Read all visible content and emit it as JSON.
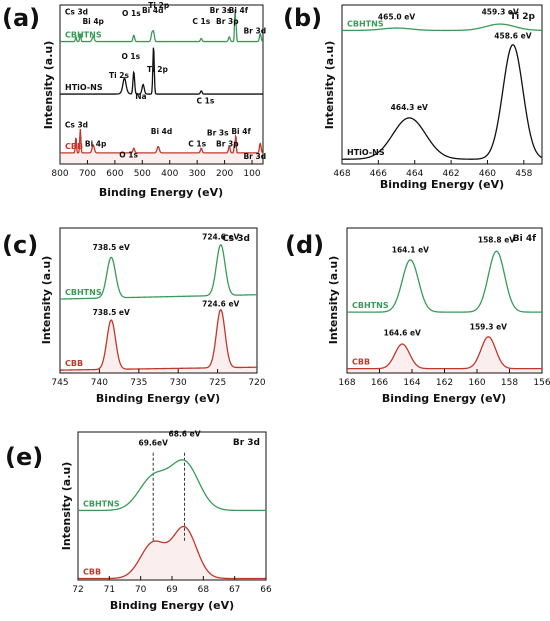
{
  "chart_data": [
    {
      "id": "a",
      "panel_label": "(a)",
      "type": "line",
      "xlabel": "Binding Energy (eV)",
      "ylabel": "Intensity (a.u)",
      "xlim": [
        800,
        60
      ],
      "ylim": [
        0,
        100
      ],
      "xticks": [
        "800",
        "700",
        "600",
        "500",
        "400",
        "300",
        "200",
        "100"
      ],
      "series": [
        {
          "name": "CBHTNS",
          "color": "#3a9a5a",
          "baseline": 77,
          "peaks": [
            [
              742,
              3,
              2
            ],
            [
              726,
              5,
              2
            ],
            [
              679,
              3,
              4
            ],
            [
              531,
              4,
              3
            ],
            [
              465,
              5,
              3
            ],
            [
              459,
              6,
              3
            ],
            [
              285,
              2,
              3
            ],
            [
              183,
              3,
              3
            ],
            [
              162,
              20,
              1.8
            ],
            [
              158,
              10,
              1.5
            ],
            [
              70,
              5,
              3
            ]
          ]
        },
        {
          "name": "HTiO-NS",
          "color": "#111111",
          "baseline": 44,
          "peaks": [
            [
              565,
              6,
              5
            ],
            [
              531,
              14,
              3
            ],
            [
              459,
              30,
              2.5
            ],
            [
              565,
              4,
              8
            ],
            [
              497,
              6,
              4
            ],
            [
              285,
              2,
              3
            ]
          ]
        },
        {
          "name": "CBB",
          "color": "#c0392b",
          "baseline": 7,
          "peaks": [
            [
              742,
              10,
              2
            ],
            [
              726,
              15,
              2
            ],
            [
              679,
              5,
              4
            ],
            [
              531,
              3,
              3
            ],
            [
              442,
              4,
              4
            ],
            [
              285,
              3,
              3
            ],
            [
              183,
              4,
              3
            ],
            [
              164,
              6,
              1.8
            ],
            [
              159,
              12,
              1.5
            ],
            [
              70,
              6,
              3
            ]
          ]
        }
      ],
      "annotations": [
        {
          "text": "Cs 3d",
          "x": 740,
          "y": 94,
          "series": "CBHTNS"
        },
        {
          "text": "Bi 4p",
          "x": 679,
          "y": 88,
          "series": "CBHTNS"
        },
        {
          "text": "O 1s",
          "x": 540,
          "y": 93,
          "series": "CBHTNS"
        },
        {
          "text": "Bi 4d",
          "x": 462,
          "y": 95,
          "series": "CBHTNS"
        },
        {
          "text": "Ti 2p",
          "x": 440,
          "y": 98,
          "series": "CBHTNS"
        },
        {
          "text": "C 1s",
          "x": 285,
          "y": 88,
          "series": "CBHTNS"
        },
        {
          "text": "Br 3s",
          "x": 215,
          "y": 95,
          "series": "CBHTNS"
        },
        {
          "text": "Br 3p",
          "x": 190,
          "y": 88,
          "series": "CBHTNS"
        },
        {
          "text": "Bi 4f",
          "x": 150,
          "y": 95,
          "series": "CBHTNS"
        },
        {
          "text": "Br 3d",
          "x": 90,
          "y": 82,
          "series": "CBHTNS"
        },
        {
          "text": "O 1s",
          "x": 542,
          "y": 66,
          "series": "HTiO-NS"
        },
        {
          "text": "Ti 2s",
          "x": 585,
          "y": 54,
          "series": "HTiO-NS"
        },
        {
          "text": "Ti 2p",
          "x": 445,
          "y": 58,
          "series": "HTiO-NS"
        },
        {
          "text": "Na",
          "x": 505,
          "y": 41,
          "series": "HTiO-NS"
        },
        {
          "text": "C 1s",
          "x": 270,
          "y": 38,
          "series": "HTiO-NS"
        },
        {
          "text": "Cs 3d",
          "x": 740,
          "y": 23,
          "series": "CBB"
        },
        {
          "text": "Bi 4p",
          "x": 670,
          "y": 11,
          "series": "CBB"
        },
        {
          "text": "Bi 4d",
          "x": 430,
          "y": 19,
          "series": "CBB"
        },
        {
          "text": "O 1s",
          "x": 550,
          "y": 4,
          "series": "CBB"
        },
        {
          "text": "C 1s",
          "x": 300,
          "y": 11,
          "series": "CBB"
        },
        {
          "text": "Br 3s",
          "x": 225,
          "y": 18,
          "series": "CBB"
        },
        {
          "text": "Br 3p",
          "x": 190,
          "y": 11,
          "series": "CBB"
        },
        {
          "text": "Bi 4f",
          "x": 140,
          "y": 19,
          "series": "CBB"
        },
        {
          "text": "Br 3d",
          "x": 90,
          "y": 3,
          "series": "CBB"
        }
      ]
    },
    {
      "id": "b",
      "panel_label": "(b)",
      "type": "line",
      "corner_label": "Ti 2p",
      "xlabel": "Binding Energy (eV)",
      "ylabel": "Intensity (a.u)",
      "xlim": [
        468,
        457
      ],
      "ylim": [
        0,
        100
      ],
      "xticks": [
        "468",
        "466",
        "464",
        "462",
        "460",
        "458"
      ],
      "series": [
        {
          "name": "CBHTNS",
          "color": "#3a9a5a",
          "baseline": 84,
          "peaks": [
            [
              465.0,
              1.5,
              0.8
            ],
            [
              459.3,
              4,
              0.8
            ]
          ]
        },
        {
          "name": "HTiO-NS",
          "color": "#111111",
          "baseline": 3,
          "peaks": [
            [
              464.3,
              26,
              0.9
            ],
            [
              458.6,
              72,
              0.55
            ]
          ]
        }
      ],
      "annotations": [
        {
          "text": "465.0 eV",
          "x": 465.0,
          "y": 91
        },
        {
          "text": "459.3 eV",
          "x": 459.3,
          "y": 94
        },
        {
          "text": "464.3 eV",
          "x": 464.3,
          "y": 34
        },
        {
          "text": "458.6 eV",
          "x": 458.6,
          "y": 79
        }
      ]
    },
    {
      "id": "c",
      "panel_label": "(c)",
      "type": "line",
      "corner_label": "Cs 3d",
      "xlabel": "Binding Energy (eV)",
      "ylabel": "Intensity (a.u)",
      "xlim": [
        745,
        720
      ],
      "ylim": [
        0,
        100
      ],
      "xticks": [
        "745",
        "740",
        "735",
        "730",
        "725",
        "720"
      ],
      "series": [
        {
          "name": "CBHTNS",
          "color": "#3a9a5a",
          "baseline": 51,
          "slope": 3,
          "peaks": [
            [
              738.5,
              28,
              0.55
            ],
            [
              724.6,
              35,
              0.55
            ]
          ]
        },
        {
          "name": "CBB",
          "color": "#c0392b",
          "baseline": 2,
          "slope": 2,
          "peaks": [
            [
              738.5,
              34,
              0.55
            ],
            [
              724.6,
              40,
              0.55
            ]
          ]
        }
      ],
      "annotations": [
        {
          "text": "738.5 eV",
          "x": 738.5,
          "y": 85
        },
        {
          "text": "724.6 eV",
          "x": 724.6,
          "y": 92
        },
        {
          "text": "738.5 eV",
          "x": 738.5,
          "y": 40
        },
        {
          "text": "724.6 eV",
          "x": 724.6,
          "y": 46
        }
      ]
    },
    {
      "id": "d",
      "panel_label": "(d)",
      "type": "line",
      "corner_label": "Bi 4f",
      "xlabel": "Binding Energy (eV)",
      "ylabel": "Intensity (a.u)",
      "xlim": [
        168,
        156
      ],
      "ylim": [
        0,
        100
      ],
      "xticks": [
        "168",
        "166",
        "164",
        "162",
        "160",
        "158",
        "156"
      ],
      "series": [
        {
          "name": "CBHTNS",
          "color": "#3a9a5a",
          "baseline": 42,
          "peaks": [
            [
              164.1,
              36,
              0.5
            ],
            [
              158.8,
              42,
              0.5
            ]
          ]
        },
        {
          "name": "CBB",
          "color": "#c0392b",
          "baseline": 3,
          "peaks": [
            [
              164.6,
              17,
              0.45
            ],
            [
              159.3,
              22,
              0.45
            ]
          ]
        }
      ],
      "annotations": [
        {
          "text": "164.1 eV",
          "x": 164.1,
          "y": 83
        },
        {
          "text": "158.8 eV",
          "x": 158.8,
          "y": 90
        },
        {
          "text": "164.6 eV",
          "x": 164.6,
          "y": 26
        },
        {
          "text": "159.3 eV",
          "x": 159.3,
          "y": 30
        }
      ]
    },
    {
      "id": "e",
      "panel_label": "(e)",
      "type": "line",
      "corner_label": "Br 3d",
      "xlabel": "Binding Energy (eV)",
      "ylabel": "Intensity (a.u)",
      "xlim": [
        72,
        66
      ],
      "ylim": [
        0,
        100
      ],
      "xticks": [
        "72",
        "71",
        "70",
        "69",
        "68",
        "67",
        "66"
      ],
      "series": [
        {
          "name": "CBHTNS",
          "color": "#3a9a5a",
          "baseline": 47,
          "peaks": [
            [
              69.6,
              22,
              0.45
            ],
            [
              68.6,
              32,
              0.45
            ]
          ]
        },
        {
          "name": "CBB",
          "color": "#c0392b",
          "baseline": 1,
          "peaks": [
            [
              69.6,
              24,
              0.4
            ],
            [
              68.6,
              34,
              0.38
            ]
          ]
        }
      ],
      "annotations": [
        {
          "text": "69.6eV",
          "x": 69.6,
          "y": 91
        },
        {
          "text": "68.6 eV",
          "x": 68.6,
          "y": 97
        }
      ],
      "dashed_lines": [
        69.6,
        68.6
      ]
    }
  ]
}
